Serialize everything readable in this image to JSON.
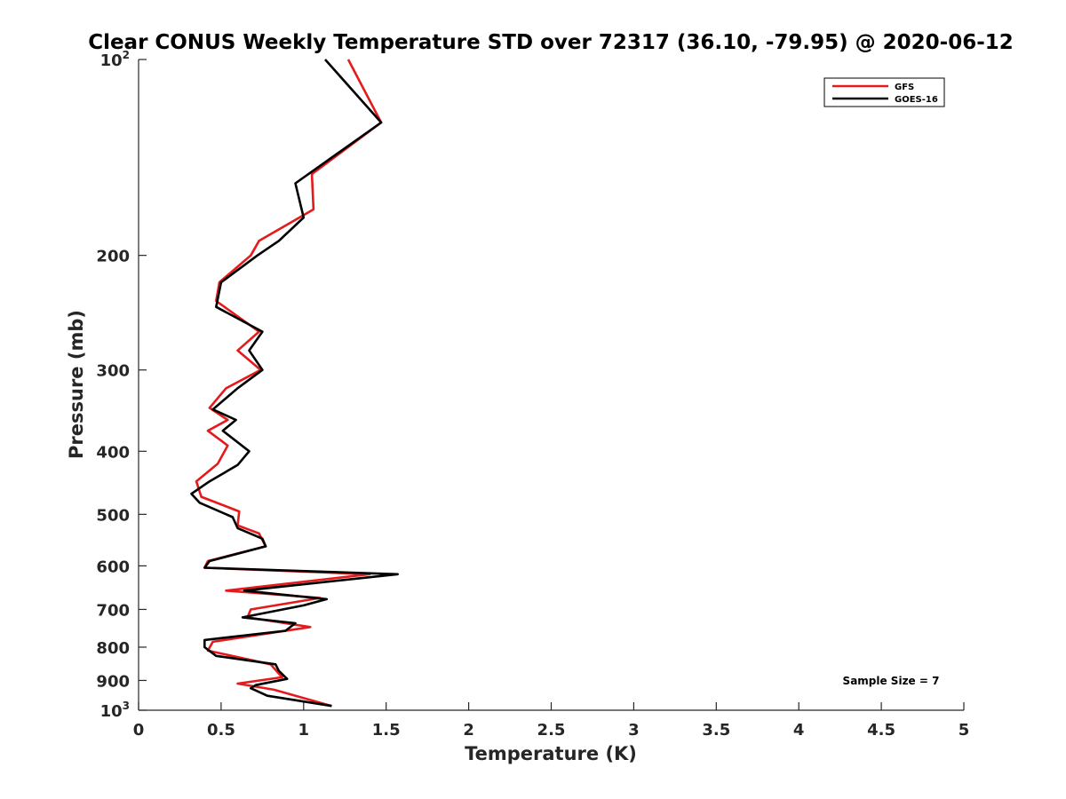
{
  "chart_data": {
    "type": "line",
    "title": "Clear CONUS Weekly Temperature STD over 72317 (36.10, -79.95) @ 2020-06-12",
    "xlabel": "Temperature (K)",
    "ylabel": "Pressure (mb)",
    "xlim": [
      0,
      5
    ],
    "ylim": [
      1000,
      100
    ],
    "yscale": "log",
    "grid": false,
    "legend_position": "top-right",
    "x_ticks": [
      "0",
      "0.5",
      "1",
      "1.5",
      "2",
      "2.5",
      "3",
      "3.5",
      "4",
      "4.5",
      "5"
    ],
    "y_ticks": [
      {
        "value": 100,
        "base": "10",
        "exp": "2"
      },
      {
        "value": 200,
        "label": "200"
      },
      {
        "value": 300,
        "label": "300"
      },
      {
        "value": 400,
        "label": "400"
      },
      {
        "value": 500,
        "label": "500"
      },
      {
        "value": 600,
        "label": "600"
      },
      {
        "value": 700,
        "label": "700"
      },
      {
        "value": 800,
        "label": "800"
      },
      {
        "value": 900,
        "label": "900"
      },
      {
        "value": 1000,
        "base": "10",
        "exp": "3"
      }
    ],
    "series": [
      {
        "name": "GFS",
        "color": "#e41a1c",
        "points": [
          [
            1.27,
            100
          ],
          [
            1.47,
            125
          ],
          [
            1.05,
            150
          ],
          [
            1.06,
            170
          ],
          [
            0.73,
            190
          ],
          [
            0.68,
            200
          ],
          [
            0.49,
            220
          ],
          [
            0.47,
            235
          ],
          [
            0.73,
            262
          ],
          [
            0.6,
            280
          ],
          [
            0.74,
            300
          ],
          [
            0.53,
            320
          ],
          [
            0.43,
            343
          ],
          [
            0.54,
            358
          ],
          [
            0.42,
            372
          ],
          [
            0.54,
            392
          ],
          [
            0.48,
            418
          ],
          [
            0.35,
            445
          ],
          [
            0.38,
            470
          ],
          [
            0.61,
            495
          ],
          [
            0.6,
            520
          ],
          [
            0.73,
            535
          ],
          [
            0.77,
            560
          ],
          [
            0.42,
            590
          ],
          [
            0.4,
            604
          ],
          [
            1.4,
            618
          ],
          [
            0.53,
            655
          ],
          [
            1.1,
            672
          ],
          [
            0.68,
            700
          ],
          [
            0.66,
            720
          ],
          [
            1.04,
            745
          ],
          [
            0.45,
            785
          ],
          [
            0.42,
            810
          ],
          [
            0.8,
            850
          ],
          [
            0.87,
            890
          ],
          [
            0.6,
            910
          ],
          [
            0.82,
            930
          ],
          [
            1.17,
            985
          ]
        ]
      },
      {
        "name": "GOES-16",
        "color": "#000000",
        "points": [
          [
            1.13,
            100
          ],
          [
            1.47,
            125
          ],
          [
            0.95,
            155
          ],
          [
            1.0,
            175
          ],
          [
            0.85,
            190
          ],
          [
            0.72,
            200
          ],
          [
            0.5,
            220
          ],
          [
            0.47,
            240
          ],
          [
            0.75,
            262
          ],
          [
            0.67,
            280
          ],
          [
            0.75,
            300
          ],
          [
            0.6,
            320
          ],
          [
            0.45,
            345
          ],
          [
            0.59,
            358
          ],
          [
            0.51,
            372
          ],
          [
            0.67,
            400
          ],
          [
            0.6,
            420
          ],
          [
            0.43,
            445
          ],
          [
            0.32,
            465
          ],
          [
            0.37,
            480
          ],
          [
            0.57,
            505
          ],
          [
            0.6,
            525
          ],
          [
            0.75,
            545
          ],
          [
            0.77,
            560
          ],
          [
            0.43,
            590
          ],
          [
            0.4,
            604
          ],
          [
            1.57,
            618
          ],
          [
            0.64,
            655
          ],
          [
            1.14,
            675
          ],
          [
            1.0,
            690
          ],
          [
            0.63,
            720
          ],
          [
            0.95,
            735
          ],
          [
            0.89,
            755
          ],
          [
            0.4,
            780
          ],
          [
            0.4,
            800
          ],
          [
            0.47,
            825
          ],
          [
            0.83,
            850
          ],
          [
            0.85,
            870
          ],
          [
            0.9,
            895
          ],
          [
            0.71,
            915
          ],
          [
            0.68,
            925
          ],
          [
            0.78,
            950
          ],
          [
            1.17,
            985
          ]
        ]
      }
    ],
    "annotation": "Sample Size = 7"
  }
}
